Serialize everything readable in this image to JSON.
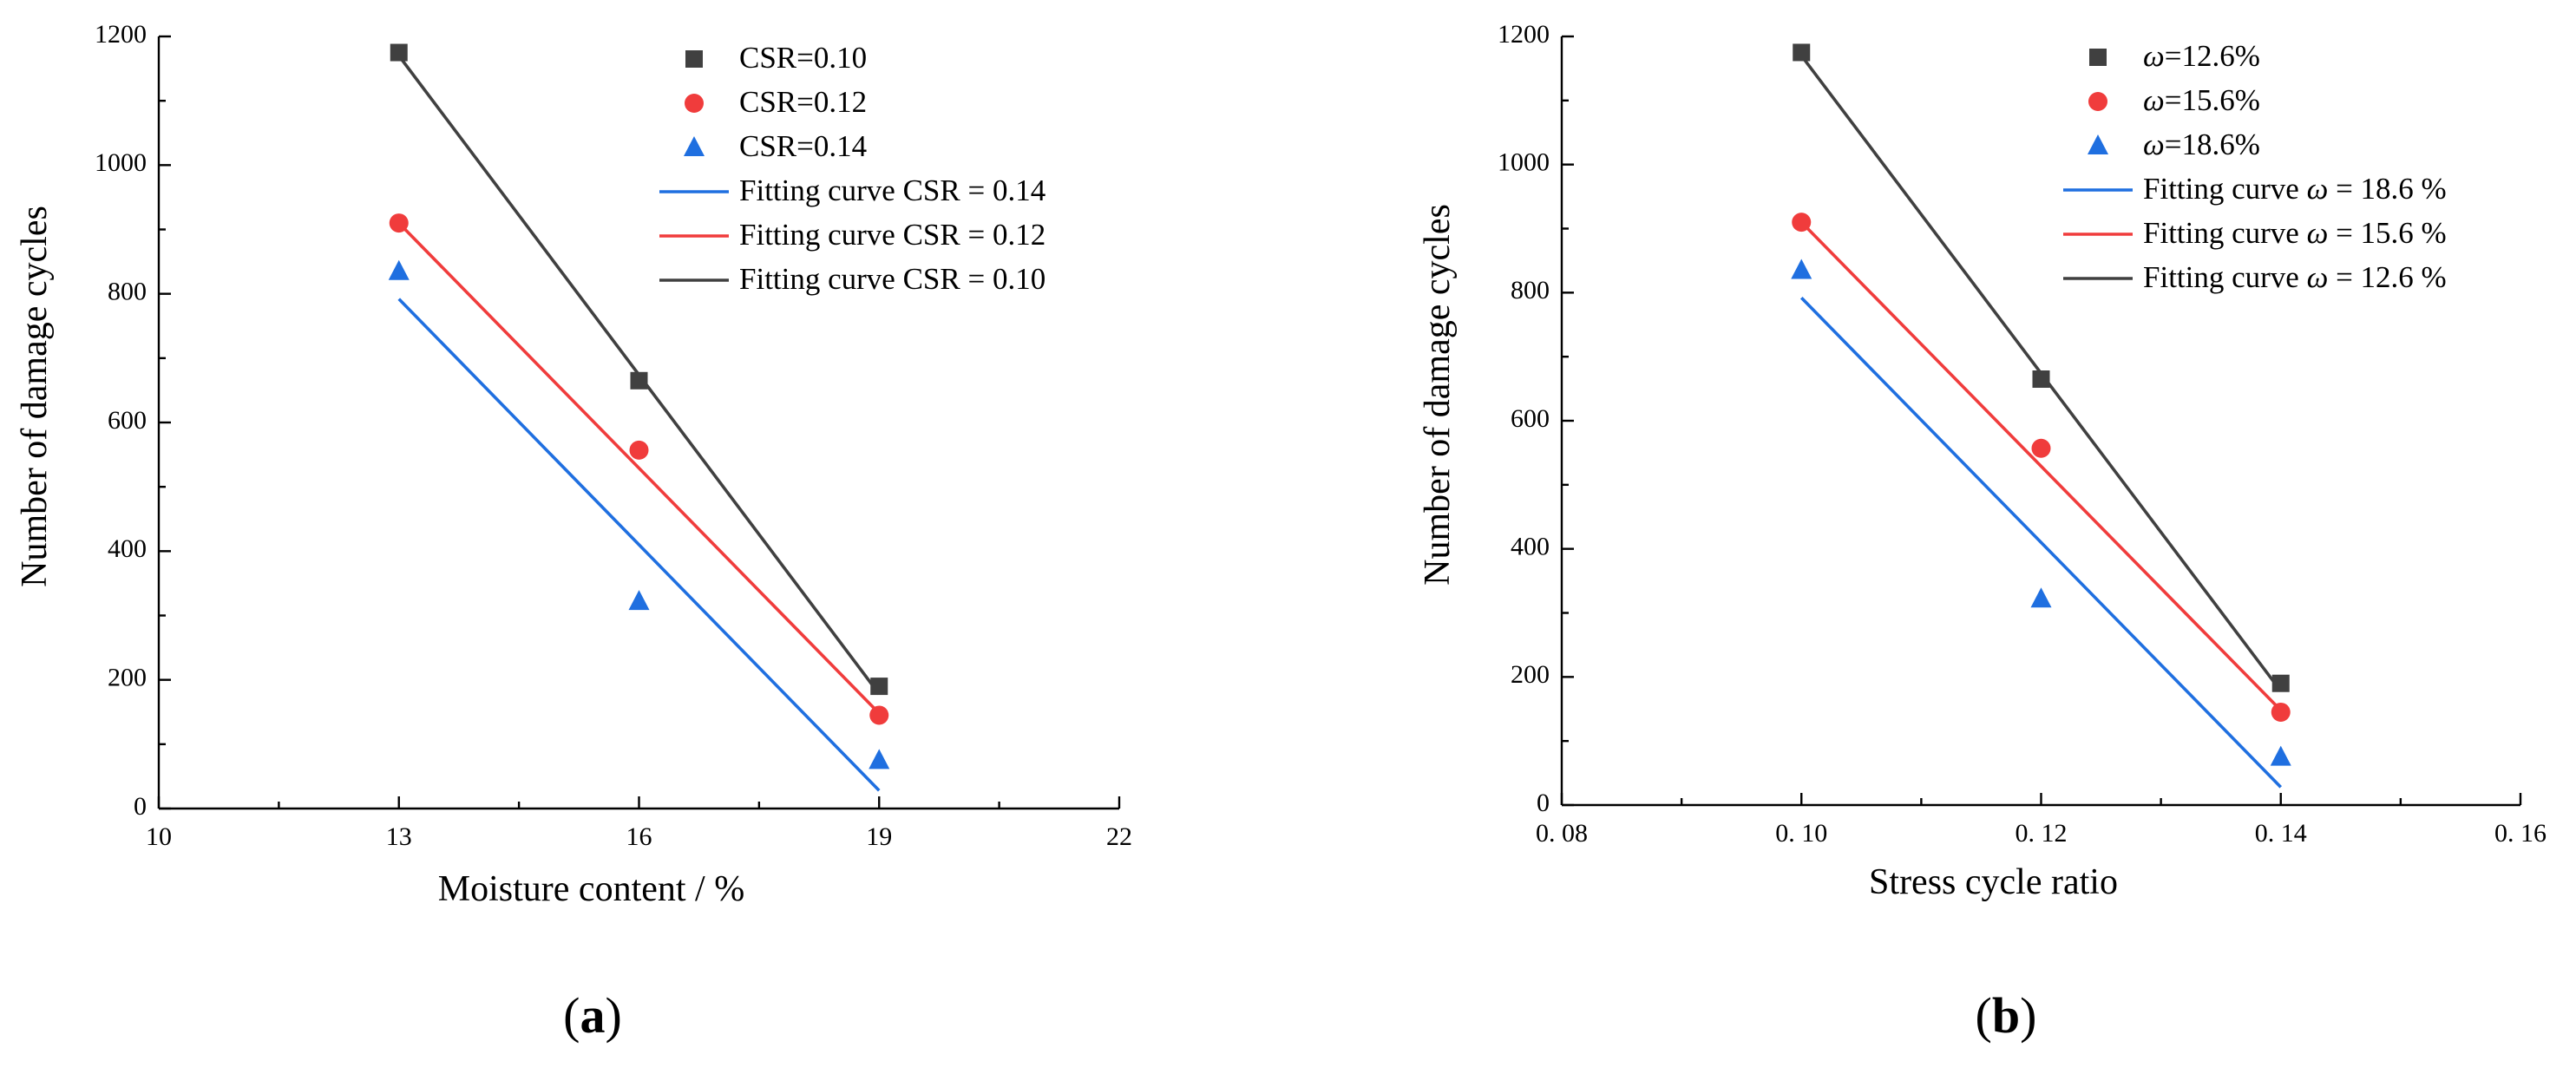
{
  "colors": {
    "gray": "#404040",
    "red": "#f03c3c",
    "blue": "#1f6fe0"
  },
  "chart_data": [
    {
      "type": "scatter",
      "panel_label": "(a)",
      "xlabel": "Moisture content / %",
      "ylabel": "Number of damage cycles",
      "xlim": [
        10,
        22
      ],
      "ylim": [
        0,
        1200
      ],
      "xticks": [
        10,
        13,
        16,
        19,
        22
      ],
      "xtick_labels": [
        "10",
        "13",
        "16",
        "19",
        "22"
      ],
      "yticks": [
        0,
        200,
        400,
        600,
        800,
        1000,
        1200
      ],
      "ytick_labels": [
        "0",
        "200",
        "400",
        "600",
        "800",
        "1000",
        "1200"
      ],
      "series": [
        {
          "name": "CSR=0.10",
          "label_prefix": "CSR=0.10",
          "label_italic": "",
          "label_suffix": "",
          "color": "#404040",
          "marker": "square",
          "x": [
            13,
            16,
            19
          ],
          "y": [
            1175,
            665,
            190
          ]
        },
        {
          "name": "CSR=0.12",
          "label_prefix": "CSR=0.12",
          "label_italic": "",
          "label_suffix": "",
          "color": "#f03c3c",
          "marker": "circle",
          "x": [
            13,
            16,
            19
          ],
          "y": [
            910,
            557,
            145
          ]
        },
        {
          "name": "CSR=0.14",
          "label_prefix": "CSR=0.14",
          "label_italic": "",
          "label_suffix": "",
          "color": "#1f6fe0",
          "marker": "triangle",
          "x": [
            13,
            16,
            19
          ],
          "y": [
            835,
            322,
            75
          ]
        }
      ],
      "fits": [
        {
          "name": "Fitting curve CSR = 0.14",
          "label_prefix": "Fitting curve CSR = 0.14",
          "label_italic": "",
          "label_suffix": "",
          "color": "#1f6fe0",
          "x": [
            13,
            19
          ],
          "y": [
            792,
            28
          ]
        },
        {
          "name": "Fitting curve CSR = 0.12",
          "label_prefix": "Fitting curve CSR = 0.12",
          "label_italic": "",
          "label_suffix": "",
          "color": "#f03c3c",
          "x": [
            13,
            19
          ],
          "y": [
            910,
            148
          ]
        },
        {
          "name": "Fitting curve CSR = 0.10",
          "label_prefix": "Fitting curve CSR = 0.10",
          "label_italic": "",
          "label_suffix": "",
          "color": "#404040",
          "x": [
            13,
            19
          ],
          "y": [
            1170,
            178
          ]
        }
      ]
    },
    {
      "type": "scatter",
      "panel_label": "(b)",
      "xlabel": "Stress cycle ratio",
      "ylabel": "Number of damage cycles",
      "xlim": [
        0.08,
        0.16
      ],
      "ylim": [
        0,
        1200
      ],
      "xticks": [
        0.08,
        0.1,
        0.12,
        0.14,
        0.16
      ],
      "xtick_labels": [
        "0. 08",
        "0. 10",
        "0. 12",
        "0. 14",
        "0. 16"
      ],
      "yticks": [
        0,
        200,
        400,
        600,
        800,
        1000,
        1200
      ],
      "ytick_labels": [
        "0",
        "200",
        "400",
        "600",
        "800",
        "1000",
        "1200"
      ],
      "series": [
        {
          "name": "ω=12.6%",
          "label_prefix": "",
          "label_italic": "ω",
          "label_suffix": "=12.6%",
          "color": "#404040",
          "marker": "square",
          "x": [
            0.1,
            0.12,
            0.14
          ],
          "y": [
            1175,
            665,
            190
          ]
        },
        {
          "name": "ω=15.6%",
          "label_prefix": "",
          "label_italic": "ω",
          "label_suffix": "=15.6%",
          "color": "#f03c3c",
          "marker": "circle",
          "x": [
            0.1,
            0.12,
            0.14
          ],
          "y": [
            910,
            557,
            145
          ]
        },
        {
          "name": "ω=18.6%",
          "label_prefix": "",
          "label_italic": "ω",
          "label_suffix": "=18.6%",
          "color": "#1f6fe0",
          "marker": "triangle",
          "x": [
            0.1,
            0.12,
            0.14
          ],
          "y": [
            835,
            322,
            75
          ]
        }
      ],
      "fits": [
        {
          "name": "Fitting curve ω = 18.6 %",
          "label_prefix": "Fitting curve ",
          "label_italic": "ω",
          "label_suffix": " = 18.6 %",
          "color": "#1f6fe0",
          "x": [
            0.1,
            0.14
          ],
          "y": [
            792,
            28
          ]
        },
        {
          "name": "Fitting curve ω = 15.6 %",
          "label_prefix": "Fitting curve ",
          "label_italic": "ω",
          "label_suffix": " = 15.6 %",
          "color": "#f03c3c",
          "x": [
            0.1,
            0.14
          ],
          "y": [
            910,
            148
          ]
        },
        {
          "name": "Fitting curve ω = 12.6 %",
          "label_prefix": "Fitting curve ",
          "label_italic": "ω",
          "label_suffix": " = 12.6 %",
          "color": "#404040",
          "x": [
            0.1,
            0.14
          ],
          "y": [
            1170,
            178
          ]
        }
      ]
    }
  ]
}
